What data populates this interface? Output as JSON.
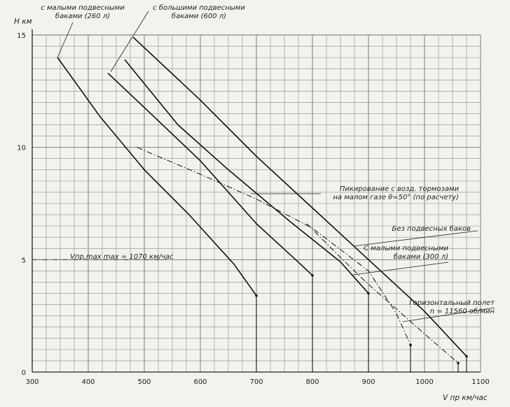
{
  "chart_data": {
    "type": "line",
    "title": "",
    "xlabel": "V пр км/час",
    "ylabel": "Н км",
    "xlim": [
      300,
      1100
    ],
    "ylim": [
      0,
      15
    ],
    "x_ticks": [
      "300",
      "400",
      "500",
      "600",
      "700",
      "800",
      "900",
      "1000",
      "1100"
    ],
    "y_ticks": [
      "0",
      "5",
      "10",
      "15"
    ],
    "grid": true,
    "series": [
      {
        "id": "small_tanks_260",
        "style": "solid",
        "points": [
          [
            345,
            14.0
          ],
          [
            420,
            11.4
          ],
          [
            500,
            9.0
          ],
          [
            580,
            7.0
          ],
          [
            660,
            4.8
          ],
          [
            700,
            3.4
          ]
        ],
        "end_drop": [
          700,
          3.4
        ]
      },
      {
        "id": "large_tanks_600",
        "style": "solid",
        "points": [
          [
            435,
            13.3
          ],
          [
            520,
            11.3
          ],
          [
            600,
            9.4
          ],
          [
            700,
            6.6
          ],
          [
            770,
            5.0
          ],
          [
            800,
            4.3
          ]
        ],
        "end_drop": [
          800,
          4.3
        ]
      },
      {
        "id": "small_tanks_300",
        "style": "solid",
        "points": [
          [
            465,
            13.9
          ],
          [
            560,
            11.0
          ],
          [
            650,
            9.0
          ],
          [
            760,
            6.7
          ],
          [
            850,
            4.9
          ],
          [
            900,
            3.5
          ]
        ],
        "end_drop": [
          900,
          3.5
        ]
      },
      {
        "id": "no_tanks",
        "style": "solid",
        "points": [
          [
            480,
            14.9
          ],
          [
            600,
            12.1
          ],
          [
            700,
            9.6
          ],
          [
            800,
            7.3
          ],
          [
            900,
            5.0
          ],
          [
            1000,
            2.7
          ],
          [
            1075,
            0.7
          ]
        ],
        "end_drop": [
          1075,
          0.7
        ]
      },
      {
        "id": "dive_air_brakes",
        "style": "dash-dot",
        "points": [
          [
            487,
            10.0
          ],
          [
            600,
            8.8
          ],
          [
            700,
            7.7
          ],
          [
            800,
            6.4
          ],
          [
            900,
            4.5
          ],
          [
            950,
            2.6
          ],
          [
            975,
            1.2
          ]
        ],
        "end_drop": [
          975,
          1.2
        ]
      },
      {
        "id": "level_flight",
        "style": "dash-dot",
        "points": [
          [
            790,
            6.6
          ],
          [
            850,
            5.1
          ],
          [
            900,
            3.9
          ],
          [
            950,
            2.8
          ],
          [
            1000,
            1.7
          ],
          [
            1060,
            0.4
          ]
        ],
        "end_drop": [
          1060,
          0.4
        ]
      }
    ],
    "vmax_line": {
      "y": 5.0,
      "x_from": 300,
      "x_to": 540
    },
    "annotations": {
      "small_tanks_260": [
        "с малыми подвесными",
        "баками (260 л)"
      ],
      "large_tanks_600": [
        "с большими подвесными",
        "баками (600 л)"
      ],
      "dive": [
        "Пикирование с возд. тормозами",
        "на малом газе θ=50° (по расчету)"
      ],
      "no_tanks": [
        "Без подвесных баков"
      ],
      "small_tanks_300": [
        "С малыми подвесными",
        "баками (300 л)"
      ],
      "level_flight": [
        "Горизонтальный полет",
        "n = 11560 об/мин"
      ],
      "vmax": "Vпр.max max = 1070 км/час"
    }
  }
}
